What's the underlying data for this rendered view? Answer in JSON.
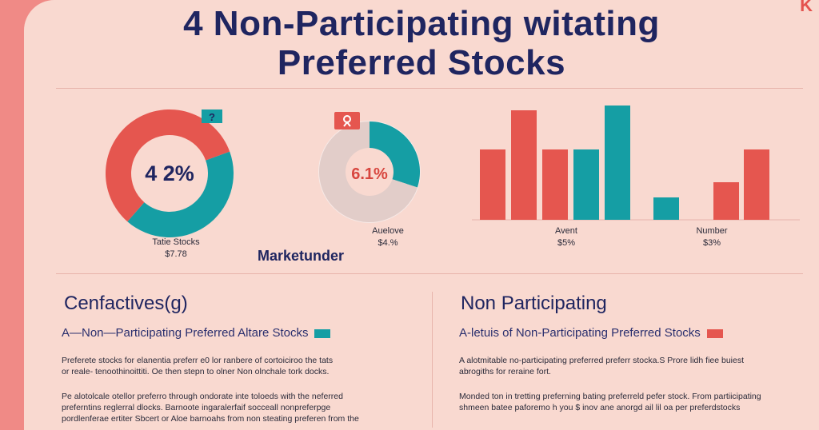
{
  "title": {
    "line1": "4 Non-Participating witating",
    "line2": "Preferred Stocks",
    "corner": "K"
  },
  "colors": {
    "teal": "#159ea4",
    "red": "#e5564f",
    "navy": "#1f2560",
    "grey": "#e2cdc9",
    "background": "#f9d9d0",
    "frame": "#f08a86"
  },
  "chart_data": [
    {
      "type": "pie",
      "center_label": "4 2%",
      "badge": "?",
      "slices": [
        {
          "label": "teal",
          "value": 42
        },
        {
          "label": "red",
          "value": 58
        }
      ],
      "caption": "Tatie Stocks",
      "caption_value": "$7.78"
    },
    {
      "type": "pie",
      "center_label": "6.1%",
      "badge": "",
      "slices": [
        {
          "label": "teal",
          "value": 30
        },
        {
          "label": "grey",
          "value": 70
        }
      ],
      "caption": "Auelove",
      "caption_value": "$4.%"
    },
    {
      "type": "bar",
      "ylim": [
        0,
        145
      ],
      "bars": [
        {
          "value": 88,
          "color": "red"
        },
        {
          "value": 137,
          "color": "red"
        },
        {
          "value": 88,
          "color": "red"
        },
        {
          "value": 88,
          "color": "teal"
        },
        {
          "value": 143,
          "color": "teal"
        },
        {
          "value": 28,
          "color": "teal"
        },
        {
          "value": 47,
          "color": "red"
        },
        {
          "value": 88,
          "color": "red"
        }
      ],
      "captions": [
        {
          "label": "Avent",
          "value": "$5%"
        },
        {
          "label": "Number",
          "value": "$3%"
        }
      ]
    }
  ],
  "brand": "Marketunder",
  "left": {
    "heading": "Cenfactives(g)",
    "subheading": "A—Non—Participating Preferred Altare Stocks",
    "para1": "Preferete stocks for elanentia preferr e0 lor ranbere of cortoiciroo the tats\nor reale- tenoothinoittiti. Oe then stepn to olner Non olnchale tork docks.",
    "para2": "Pe alotolcale otellor preferro through ondorate inte toloeds with the neferred\npreferntins reglerral dlocks.  Barnoote ingaralerfaif socceall nonpreferpge\npordlenferae ertiter Sbcert or Aloe barnoahs from non steating preferen from the"
  },
  "right": {
    "heading": "Non Participating",
    "subheading": "A-letuis of Non-Participating Preferred Stocks",
    "para1": "A alotmitable no-participating preferred preferr stocka.S Prore lidh fiee buiest\nabrogiths for reraine fort.",
    "para2": "Monded ton in tretting preferning bating preferreld pefer stock.  From partiicipating\nshmeen batee paforemo h you $ inov ane anorgd ail lil oa per preferdstocks"
  }
}
